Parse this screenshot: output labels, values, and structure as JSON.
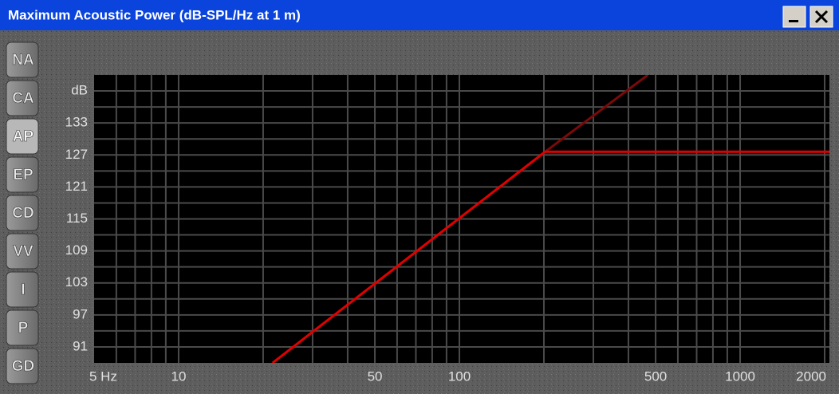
{
  "window": {
    "title": "Maximum Acoustic Power (dB-SPL/Hz at 1 m)"
  },
  "tabs": [
    "NA",
    "CA",
    "AP",
    "EP",
    "CD",
    "VV",
    "I",
    "P",
    "GD"
  ],
  "selected_tab": 2,
  "chart_data": {
    "type": "line",
    "log_x": true,
    "grid": true,
    "grid_color": "#4a4a4a",
    "xlim": [
      5,
      2080
    ],
    "ylim": [
      88,
      142
    ],
    "xticks": [
      {
        "value": 5,
        "label": "5 Hz"
      },
      10,
      50,
      100,
      500,
      1000,
      2000
    ],
    "yticks": [
      91,
      97,
      103,
      109,
      115,
      121,
      127,
      133,
      {
        "value": 139,
        "label": "dB"
      }
    ],
    "xgrid": [
      6,
      7,
      8,
      9,
      10,
      20,
      30,
      40,
      50,
      60,
      70,
      80,
      90,
      100,
      200,
      300,
      400,
      500,
      600,
      700,
      800,
      900,
      1000,
      2000
    ],
    "ygrid": [
      91,
      94,
      97,
      100,
      103,
      106,
      109,
      112,
      115,
      118,
      121,
      124,
      127,
      130,
      133,
      136,
      139
    ],
    "series": [
      {
        "color": "#e00000",
        "x": [
          21.6,
          202,
          2080
        ],
        "values": [
          88,
          127.6,
          127.6
        ]
      },
      {
        "color": "#7a0a0a",
        "x": [
          202,
          469
        ],
        "values": [
          127.6,
          142
        ]
      }
    ]
  }
}
